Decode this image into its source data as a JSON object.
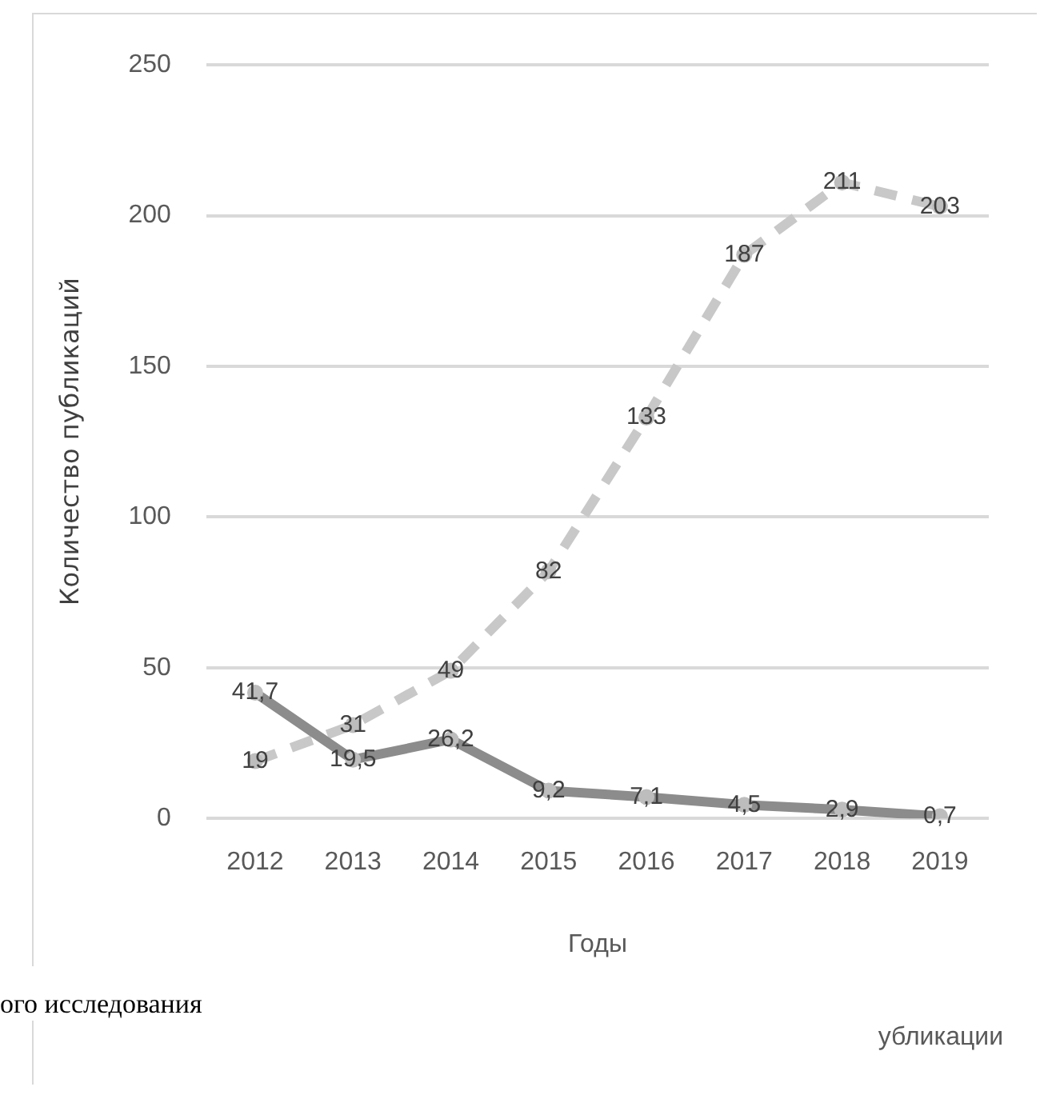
{
  "chart_data": {
    "type": "line",
    "xlabel": "Годы",
    "ylabel": "Количество публикаций",
    "categories": [
      "2012",
      "2013",
      "2014",
      "2015",
      "2016",
      "2017",
      "2018",
      "2019"
    ],
    "series": [
      {
        "color": "#8c8c8c",
        "line_style": "solid",
        "values": [
          41.7,
          19.5,
          26.2,
          9.2,
          7.1,
          4.5,
          2.9,
          0.7
        ],
        "value_labels": [
          "41,7",
          "19,5",
          "26,2",
          "9,2",
          "7,1",
          "4,5",
          "2,9",
          "0,7"
        ]
      },
      {
        "color": "#c8c8c8",
        "line_style": "dashed",
        "values": [
          19,
          31,
          49,
          82,
          133,
          187,
          211,
          203
        ],
        "value_labels": [
          "19",
          "31",
          "49",
          "82",
          "133",
          "187",
          "211",
          "203"
        ]
      }
    ],
    "ylim": [
      0,
      250
    ],
    "yticks": [
      0,
      50,
      100,
      150,
      200,
      250
    ],
    "grid": "y",
    "legend": false,
    "marker": "circle",
    "annotations": [
      "ого исследования",
      "убликации"
    ]
  }
}
